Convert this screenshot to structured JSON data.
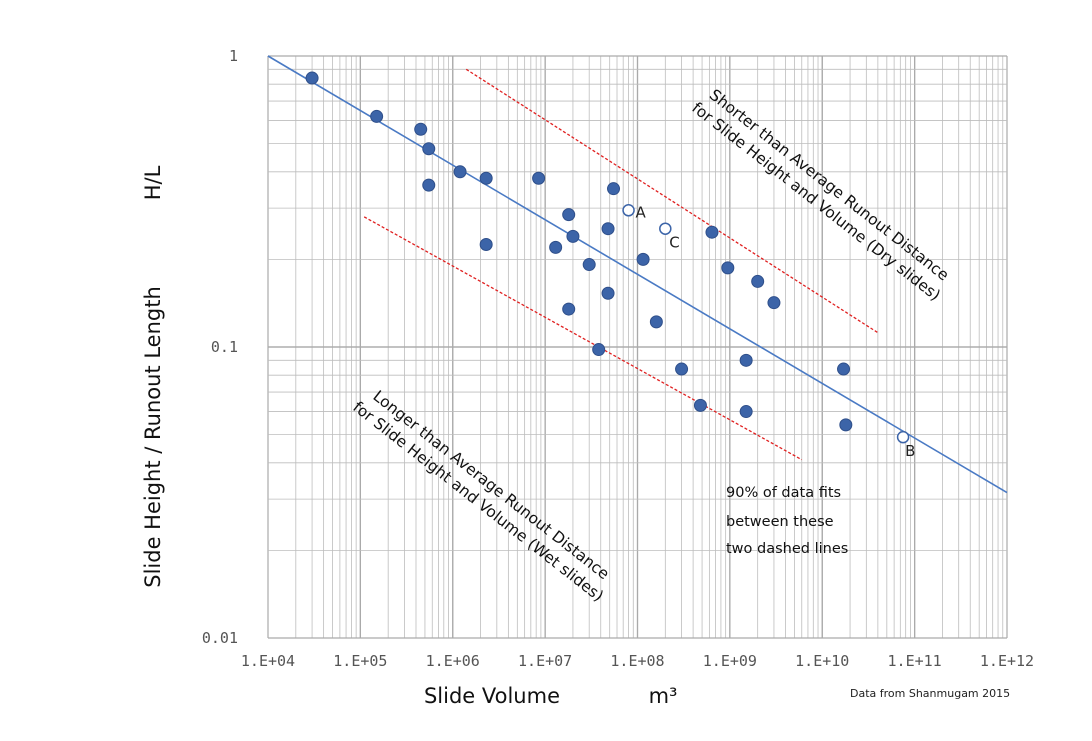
{
  "chart_data": {
    "type": "scatter",
    "x_scale": "log",
    "y_scale": "log",
    "xlim": [
      10000,
      1000000000000
    ],
    "ylim": [
      0.01,
      1
    ],
    "grid": true,
    "xlabel": "Slide Volume",
    "xlabel_unit": "m³",
    "ylabel": "Slide Height / Runout Length",
    "ylabel_unit": "H/L",
    "x_ticks": [
      "1.E+04",
      "1.E+05",
      "1.E+06",
      "1.E+07",
      "1.E+08",
      "1.E+09",
      "1.E+10",
      "1.E+11",
      "1.E+12"
    ],
    "y_ticks": [
      "0.01",
      "0.1",
      "1"
    ],
    "colors": {
      "points": "#3c64a8",
      "point_edge": "#2f4f8a",
      "fit_line": "#4a7ac4",
      "bound_lines": "#e02020",
      "grid": "#bdbdbd"
    },
    "fit_line": {
      "x": [
        10000,
        1000000000000
      ],
      "y": [
        1.0,
        0.0316
      ]
    },
    "upper_bound": {
      "x": [
        1400000,
        40000000000
      ],
      "y": [
        0.9,
        0.112
      ]
    },
    "lower_bound": {
      "x": [
        110000,
        6000000000
      ],
      "y": [
        0.28,
        0.041
      ]
    },
    "filled_points": [
      {
        "x": 30000,
        "y": 0.84
      },
      {
        "x": 150000,
        "y": 0.62
      },
      {
        "x": 450000,
        "y": 0.56
      },
      {
        "x": 550000,
        "y": 0.48
      },
      {
        "x": 550000,
        "y": 0.36
      },
      {
        "x": 1200000,
        "y": 0.4
      },
      {
        "x": 2300000,
        "y": 0.38
      },
      {
        "x": 2300000,
        "y": 0.225
      },
      {
        "x": 8500000,
        "y": 0.38
      },
      {
        "x": 13000000,
        "y": 0.22
      },
      {
        "x": 18000000,
        "y": 0.285
      },
      {
        "x": 20000000,
        "y": 0.24
      },
      {
        "x": 18000000,
        "y": 0.135
      },
      {
        "x": 30000000,
        "y": 0.192
      },
      {
        "x": 38000000,
        "y": 0.098
      },
      {
        "x": 48000000,
        "y": 0.255
      },
      {
        "x": 48000000,
        "y": 0.153
      },
      {
        "x": 55000000,
        "y": 0.35
      },
      {
        "x": 115000000,
        "y": 0.2
      },
      {
        "x": 160000000,
        "y": 0.122
      },
      {
        "x": 300000000,
        "y": 0.084
      },
      {
        "x": 480000000,
        "y": 0.063
      },
      {
        "x": 640000000,
        "y": 0.248
      },
      {
        "x": 950000000,
        "y": 0.187
      },
      {
        "x": 1500000000,
        "y": 0.09
      },
      {
        "x": 1500000000,
        "y": 0.06
      },
      {
        "x": 2000000000,
        "y": 0.168
      },
      {
        "x": 3000000000,
        "y": 0.142
      },
      {
        "x": 17000000000,
        "y": 0.084
      },
      {
        "x": 18000000000,
        "y": 0.054
      }
    ],
    "open_points": [
      {
        "label": "A",
        "x": 80000000,
        "y": 0.295
      },
      {
        "label": "C",
        "x": 200000000,
        "y": 0.255
      },
      {
        "label": "B",
        "x": 75000000000,
        "y": 0.049
      }
    ],
    "annotations": {
      "upper_line1": "Shorter than Average Runout Distance",
      "upper_line2": "for Slide Height and Volume (Dry slides)",
      "lower_line1": "Longer than Average Runout Distance",
      "lower_line2": "for Slide Height and Volume (Wet slides)",
      "fit_note": [
        "90% of data fits",
        "between these",
        "two dashed lines"
      ]
    },
    "source": "Data from Shanmugam 2015"
  }
}
